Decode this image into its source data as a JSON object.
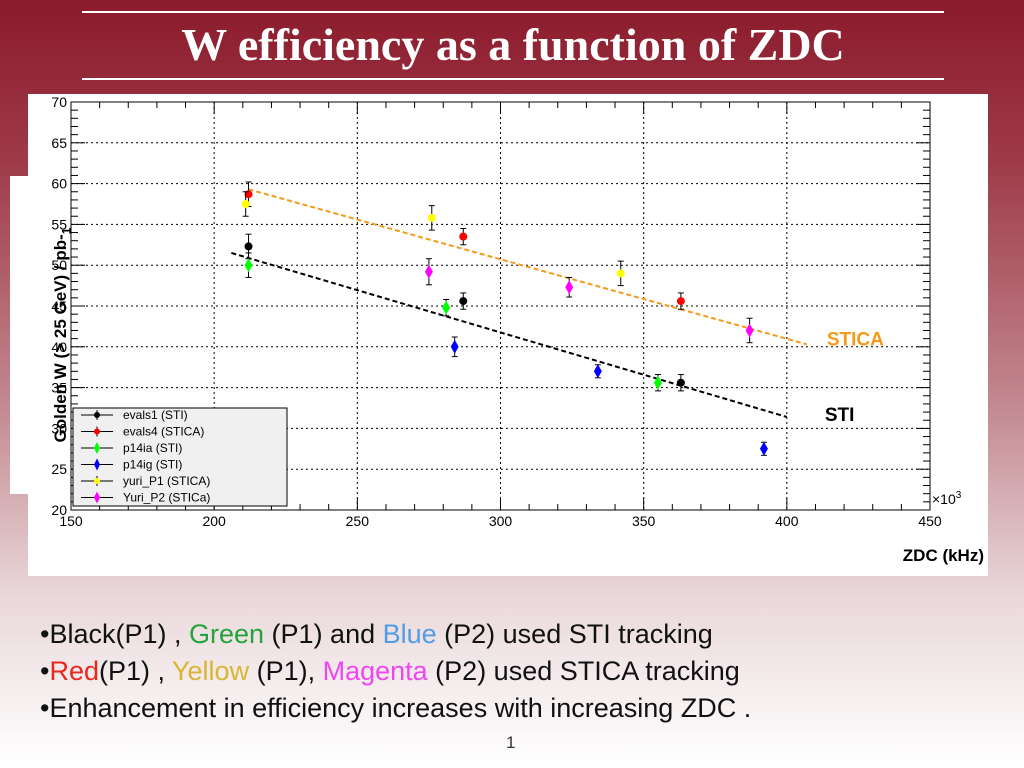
{
  "slide": {
    "title": "W efficiency as a function of ZDC",
    "page_number": "1",
    "bullets": [
      [
        {
          "text": "•",
          "color": "#111111"
        },
        {
          "text": "Black(P1) , ",
          "color": "#111111"
        },
        {
          "text": "Green",
          "color": "#22a33c"
        },
        {
          "text": " (P1)  and ",
          "color": "#111111"
        },
        {
          "text": "Blue",
          "color": "#4f9de8"
        },
        {
          "text": " (P2) used STI tracking",
          "color": "#111111"
        }
      ],
      [
        {
          "text": "•",
          "color": "#111111"
        },
        {
          "text": "Red",
          "color": "#e8281c"
        },
        {
          "text": "(P1) , ",
          "color": "#111111"
        },
        {
          "text": "Yellow",
          "color": "#d8b632"
        },
        {
          "text": " (P1), ",
          "color": "#111111"
        },
        {
          "text": "Magenta",
          "color": "#ef46ef"
        },
        {
          "text": " (P2) used STICA tracking",
          "color": "#111111"
        }
      ],
      [
        {
          "text": "•",
          "color": "#111111"
        },
        {
          "text": "Enhancement  in efficiency increases with increasing ZDC .",
          "color": "#111111"
        }
      ]
    ]
  },
  "chart_data": {
    "type": "scatter",
    "title": "",
    "xlabel": "ZDC (kHz)",
    "ylabel": "Golden W  (> 25 GeV) / pb-1",
    "x_multiplier_label": "×10",
    "x_multiplier_exp": "3",
    "xlim": [
      150,
      450
    ],
    "ylim": [
      20,
      70
    ],
    "xticks": [
      150,
      200,
      250,
      300,
      350,
      400,
      450
    ],
    "yticks": [
      20,
      25,
      30,
      35,
      40,
      45,
      50,
      55,
      60,
      65,
      70
    ],
    "grid": true,
    "legend_position": "bottom-left",
    "series": [
      {
        "name": "evals1 (STI)",
        "color": "#000000",
        "marker": "circle",
        "points": [
          [
            212,
            52.3,
            1.5
          ],
          [
            287,
            45.6,
            1.0
          ],
          [
            363,
            35.6,
            1.0
          ]
        ]
      },
      {
        "name": "evals4 (STICA)",
        "color": "#ff0000",
        "marker": "circle",
        "points": [
          [
            212,
            58.7,
            1.5
          ],
          [
            287,
            53.5,
            1.0
          ],
          [
            363,
            45.6,
            1.0
          ]
        ]
      },
      {
        "name": "p14ia (STI)",
        "color": "#00ff00",
        "marker": "diamond",
        "points": [
          [
            212,
            50.0,
            1.5
          ],
          [
            281,
            44.8,
            1.0
          ],
          [
            355,
            35.6,
            1.0
          ]
        ]
      },
      {
        "name": "p14ig (STI)",
        "color": "#0000ff",
        "marker": "diamond",
        "points": [
          [
            284,
            40.0,
            1.2
          ],
          [
            334,
            37.0,
            0.8
          ],
          [
            392,
            27.5,
            0.8
          ]
        ]
      },
      {
        "name": "yuri_P1 (STICA)",
        "color": "#ffff00",
        "marker": "circle",
        "points": [
          [
            211,
            57.5,
            1.5
          ],
          [
            276,
            55.8,
            1.5
          ],
          [
            342,
            49.0,
            1.5
          ]
        ]
      },
      {
        "name": "Yuri_P2 (STICa)",
        "color": "#ff00ff",
        "marker": "diamond",
        "points": [
          [
            275,
            49.2,
            1.6
          ],
          [
            324,
            47.3,
            1.2
          ],
          [
            387,
            42.0,
            1.5
          ]
        ]
      }
    ],
    "fit_lines": [
      {
        "name": "STICA",
        "color": "#f39a1b",
        "from": [
          212,
          59.3
        ],
        "to": [
          407,
          40.3
        ]
      },
      {
        "name": "STI",
        "color": "#000000",
        "from": [
          206,
          51.5
        ],
        "to": [
          400,
          31.4
        ]
      }
    ]
  }
}
